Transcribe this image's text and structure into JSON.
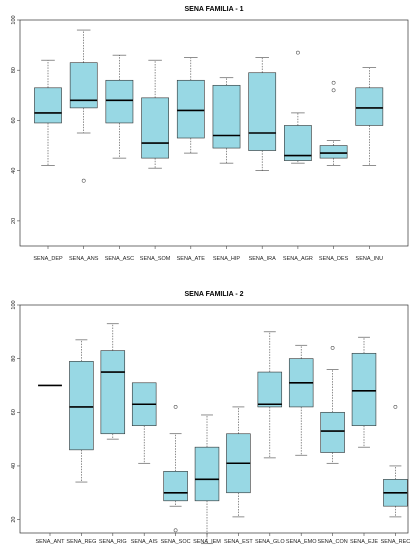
{
  "colors": {
    "box_fill": "#98d8e4",
    "median": "#000000",
    "frame": "#333333"
  },
  "chart_data": [
    {
      "type": "boxplot",
      "title": "SENA FAMILIA - 1",
      "ylim": [
        10,
        100
      ],
      "yticks": [
        20,
        40,
        60,
        80,
        100
      ],
      "categories": [
        "SENA_DEP",
        "SENA_ANS",
        "SENA_ASC",
        "SENA_SOM",
        "SENA_ATE",
        "SENA_HIP",
        "SENA_IRA",
        "SENA_AGR",
        "SENA_DES",
        "SENA_INU"
      ],
      "boxes": [
        {
          "min": 42,
          "q1": 59,
          "median": 63,
          "q3": 73,
          "max": 84,
          "outliers": []
        },
        {
          "min": 55,
          "q1": 65,
          "median": 68,
          "q3": 83,
          "max": 96,
          "outliers": [
            36
          ]
        },
        {
          "min": 45,
          "q1": 59,
          "median": 68,
          "q3": 76,
          "max": 86,
          "outliers": []
        },
        {
          "min": 41,
          "q1": 45,
          "median": 51,
          "q3": 69,
          "max": 84,
          "outliers": []
        },
        {
          "min": 47,
          "q1": 53,
          "median": 64,
          "q3": 76,
          "max": 85,
          "outliers": []
        },
        {
          "min": 43,
          "q1": 49,
          "median": 54,
          "q3": 74,
          "max": 77,
          "outliers": []
        },
        {
          "min": 40,
          "q1": 48,
          "median": 55,
          "q3": 79,
          "max": 85,
          "outliers": []
        },
        {
          "min": 43,
          "q1": 44,
          "median": 46,
          "q3": 58,
          "max": 63,
          "outliers": [
            87
          ]
        },
        {
          "min": 42,
          "q1": 45,
          "median": 47,
          "q3": 50,
          "max": 52,
          "outliers": [
            75,
            72
          ]
        },
        {
          "min": 42,
          "q1": 58,
          "median": 65,
          "q3": 73,
          "max": 81,
          "outliers": []
        }
      ]
    },
    {
      "type": "boxplot",
      "title": "SENA FAMILIA - 2",
      "ylim": [
        15,
        100
      ],
      "yticks": [
        20,
        40,
        60,
        80,
        100
      ],
      "categories": [
        "SENA_ANT",
        "SENA_REG",
        "SENA_RIG",
        "SENA_AIS",
        "SENA_SOC",
        "SENA_IEM",
        "SENA_EST",
        "SENA_GLO",
        "SENA_EMO",
        "SENA_CON",
        "SENA_EJE",
        "SENA_REC"
      ],
      "boxes": [
        {
          "min": 70,
          "q1": 70,
          "median": 70,
          "q3": 70,
          "max": 70,
          "outliers": []
        },
        {
          "min": 34,
          "q1": 46,
          "median": 62,
          "q3": 79,
          "max": 87,
          "outliers": []
        },
        {
          "min": 50,
          "q1": 52,
          "median": 75,
          "q3": 83,
          "max": 93,
          "outliers": []
        },
        {
          "min": 41,
          "q1": 55,
          "median": 63,
          "q3": 71,
          "max": 71,
          "outliers": []
        },
        {
          "min": 25,
          "q1": 27,
          "median": 30,
          "q3": 38,
          "max": 52,
          "outliers": [
            62,
            16
          ]
        },
        {
          "min": 11,
          "q1": 27,
          "median": 35,
          "q3": 47,
          "max": 59,
          "outliers": []
        },
        {
          "min": 21,
          "q1": 30,
          "median": 41,
          "q3": 52,
          "max": 62,
          "outliers": []
        },
        {
          "min": 43,
          "q1": 62,
          "median": 63,
          "q3": 75,
          "max": 90,
          "outliers": []
        },
        {
          "min": 44,
          "q1": 62,
          "median": 71,
          "q3": 80,
          "max": 85,
          "outliers": []
        },
        {
          "min": 41,
          "q1": 45,
          "median": 53,
          "q3": 60,
          "max": 76,
          "outliers": [
            84
          ]
        },
        {
          "min": 47,
          "q1": 55,
          "median": 68,
          "q3": 82,
          "max": 88,
          "outliers": []
        },
        {
          "min": 21,
          "q1": 25,
          "median": 30,
          "q3": 35,
          "max": 40,
          "outliers": [
            62
          ]
        }
      ]
    }
  ]
}
